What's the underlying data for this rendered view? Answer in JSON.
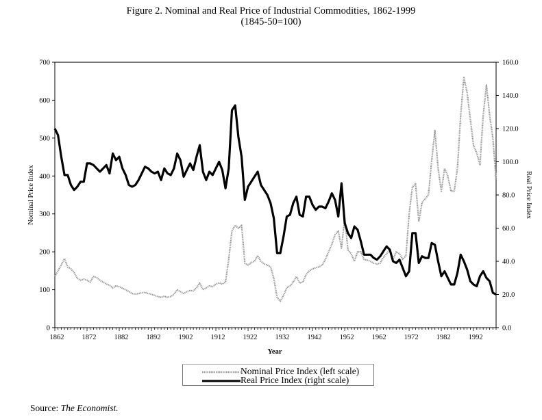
{
  "title": "Figure 2. Nominal and Real Price of Industrial Commodities, 1862-1999",
  "subtitle": "(1845-50=100)",
  "source_label": "Source:",
  "source_name": "The Economist.",
  "colors": {
    "nominal": "#9a9a9a",
    "real": "#000000",
    "axis": "#000000"
  },
  "chart_data": {
    "type": "line",
    "title": "Figure 2. Nominal and Real Price of Industrial Commodities, 1862-1999",
    "subtitle": "(1845-50=100)",
    "xlabel": "Year",
    "ylabel_left": "Nominal Price Index",
    "ylabel_right": "Real Price Index",
    "x_start": 1862,
    "x_end": 1999,
    "x_ticks": [
      "1862",
      "1872",
      "1882",
      "1892",
      "1902",
      "1912",
      "1922",
      "1932",
      "1942",
      "1952",
      "1962",
      "1972",
      "1982",
      "1992"
    ],
    "ylim_left": [
      0,
      700
    ],
    "ylim_right": [
      0,
      160
    ],
    "y_ticks_left": [
      "0",
      "100",
      "200",
      "300",
      "400",
      "500",
      "600",
      "700"
    ],
    "y_ticks_right": [
      "0.0",
      "20.0",
      "40.0",
      "60.0",
      "80.0",
      "100.0",
      "120.0",
      "140.0",
      "160.0"
    ],
    "grid": false,
    "legend_position": "bottom-center",
    "series": [
      {
        "name": "Nominal Price Index (left scale)",
        "axis": "left",
        "values": [
          135,
          150,
          165,
          182,
          160,
          155,
          145,
          130,
          125,
          128,
          125,
          120,
          135,
          132,
          125,
          120,
          115,
          112,
          105,
          110,
          108,
          104,
          100,
          95,
          90,
          88,
          90,
          92,
          93,
          90,
          88,
          85,
          82,
          80,
          83,
          80,
          82,
          88,
          100,
          95,
          90,
          95,
          98,
          97,
          105,
          118,
          100,
          105,
          110,
          108,
          115,
          118,
          115,
          120,
          180,
          255,
          270,
          262,
          270,
          170,
          165,
          172,
          175,
          190,
          175,
          168,
          165,
          160,
          130,
          80,
          70,
          85,
          105,
          110,
          120,
          135,
          118,
          120,
          140,
          150,
          155,
          158,
          160,
          165,
          180,
          200,
          220,
          245,
          255,
          210,
          290,
          205,
          195,
          175,
          200,
          200,
          180,
          178,
          175,
          170,
          168,
          170,
          185,
          195,
          205,
          180,
          200,
          195,
          180,
          190,
          300,
          370,
          380,
          280,
          330,
          340,
          350,
          440,
          520,
          420,
          360,
          420,
          400,
          360,
          360,
          420,
          560,
          660,
          620,
          550,
          480,
          460,
          430,
          560,
          640,
          560,
          500,
          390
        ]
      },
      {
        "name": "Real Price Index (right scale)",
        "axis": "right",
        "values": [
          120,
          116,
          103,
          92,
          92,
          86,
          83,
          85,
          88,
          88,
          99,
          99,
          98,
          96,
          94,
          96,
          98,
          93,
          105,
          101,
          103,
          96,
          92,
          86,
          85,
          86,
          89,
          93,
          97,
          96,
          94,
          93,
          94,
          89,
          96,
          93,
          92,
          96,
          105,
          101,
          91,
          95,
          99,
          95,
          103,
          110,
          94,
          89,
          94,
          92,
          96,
          100,
          95,
          84,
          96,
          131,
          134,
          115,
          103,
          77,
          85,
          88,
          91,
          94,
          86,
          83,
          80,
          75,
          66,
          45,
          45,
          55,
          67,
          68,
          75,
          79,
          68,
          67,
          79,
          79,
          74,
          71,
          73,
          73,
          72,
          76,
          81,
          77,
          67,
          87,
          63,
          57,
          54,
          61,
          59,
          52,
          44,
          44,
          44,
          42,
          41,
          43,
          46,
          49,
          47,
          40,
          39,
          41,
          36,
          31,
          34,
          57,
          57,
          39,
          43,
          42,
          42,
          51,
          50,
          40,
          31,
          34,
          30,
          26,
          26,
          33,
          44,
          40,
          35,
          28,
          26,
          25,
          31,
          34,
          30,
          28,
          21,
          20
        ]
      }
    ]
  }
}
